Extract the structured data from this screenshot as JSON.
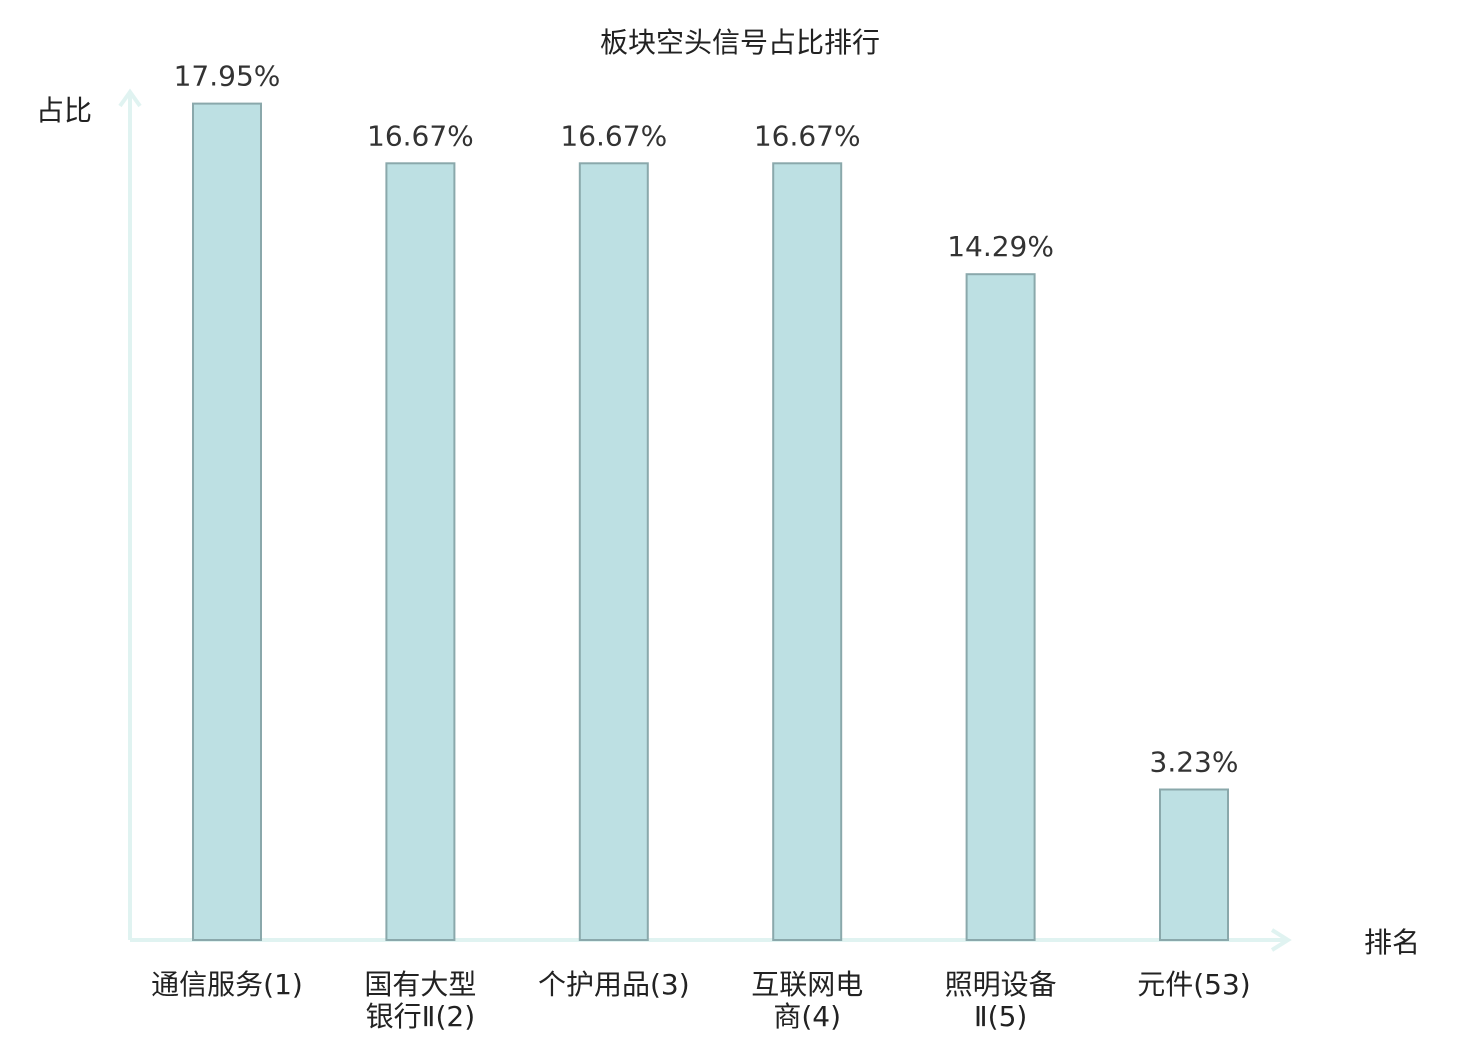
{
  "chart_data": {
    "type": "bar",
    "title": "板块空头信号占比排行",
    "ylabel": "占比",
    "xlabel": "排名",
    "ylim": [
      0,
      18.2
    ],
    "categories": [
      [
        "通信服务(1)"
      ],
      [
        "国有大型",
        "银行Ⅱ(2)"
      ],
      [
        "个护用品(3)"
      ],
      [
        "互联网电",
        "商(4)"
      ],
      [
        "照明设备",
        "Ⅱ(5)"
      ],
      [
        "元件(53)"
      ]
    ],
    "values": [
      17.95,
      16.67,
      16.67,
      16.67,
      14.29,
      3.23
    ],
    "value_labels": [
      "17.95%",
      "16.67%",
      "16.67%",
      "16.67%",
      "14.29%",
      "3.23%"
    ],
    "highlight_index": 5,
    "colors": {
      "bar_fill": "#bde0e3",
      "bar_stroke": "#8aa8ab",
      "axis": "#e0f3f1",
      "highlight_label": "#e3191b",
      "text": "#222222"
    }
  }
}
